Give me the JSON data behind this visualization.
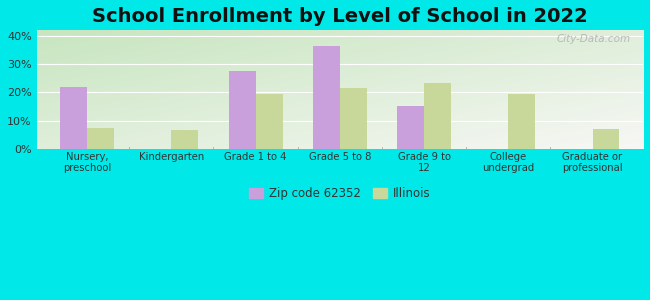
{
  "title": "School Enrollment by Level of School in 2022",
  "categories": [
    "Nursery,\npreschool",
    "Kindergarten",
    "Grade 1 to 4",
    "Grade 5 to 8",
    "Grade 9 to\n12",
    "College\nundergrad",
    "Graduate or\nprofessional"
  ],
  "zip_values": [
    22.0,
    0,
    27.5,
    36.5,
    15.0,
    0,
    0
  ],
  "il_values": [
    7.5,
    6.5,
    19.5,
    21.5,
    23.5,
    19.5,
    7.0
  ],
  "zip_color": "#c9a0dc",
  "il_color": "#c8d89a",
  "background_outer": "#00e8e8",
  "ylim": [
    0,
    42
  ],
  "yticks": [
    0,
    10,
    20,
    30,
    40
  ],
  "ytick_labels": [
    "0%",
    "10%",
    "20%",
    "30%",
    "40%"
  ],
  "title_fontsize": 14,
  "legend_label_zip": "Zip code 62352",
  "legend_label_il": "Illinois",
  "watermark": "City-Data.com"
}
